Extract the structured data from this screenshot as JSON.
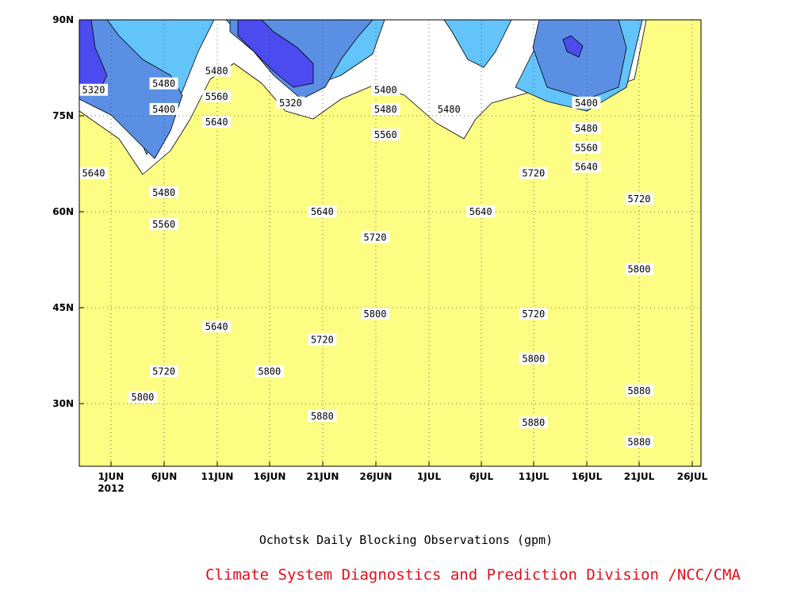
{
  "chart_data": {
    "type": "contour",
    "title": "Ochotsk Daily Blocking Observations (gpm)",
    "footer": "Climate System Diagnostics and Prediction Division /NCC/CMA",
    "x_ticks": [
      "1JUN",
      "6JUN",
      "11JUN",
      "16JUN",
      "21JUN",
      "26JUN",
      "1JUL",
      "6JUL",
      "11JUL",
      "16JUL",
      "21JUL",
      "26JUL"
    ],
    "x_year_label": "2012",
    "y_ticks": [
      "30N",
      "45N",
      "60N",
      "75N",
      "90N"
    ],
    "y_range": [
      20,
      90
    ],
    "grid": true,
    "levels": [
      5320,
      5400,
      5480,
      5560,
      5640,
      5720,
      5800,
      5880
    ],
    "fill_colors": {
      "below_5320": "#4b4bef",
      "5320_5400": "#5a8fe4",
      "5400_5480": "#63c3fb",
      "5480_5560": "#fdfd84",
      "5560_5640": "#fde09e",
      "5640_5720": "#fca367",
      "5720_5800": "#fb7647",
      "5800_5880": "#f56f7d",
      "above_5880": "#f0384e"
    },
    "contour_labels": [
      {
        "value": "5320",
        "date": "30MAY",
        "lat": 79
      },
      {
        "value": "5480",
        "date": "6JUN",
        "lat": 80
      },
      {
        "value": "5400",
        "date": "6JUN",
        "lat": 76
      },
      {
        "value": "5480",
        "date": "11JUN",
        "lat": 82
      },
      {
        "value": "5560",
        "date": "11JUN",
        "lat": 78
      },
      {
        "value": "5640",
        "date": "11JUN",
        "lat": 74
      },
      {
        "value": "5320",
        "date": "18JUN",
        "lat": 77
      },
      {
        "value": "5400",
        "date": "27JUN",
        "lat": 79
      },
      {
        "value": "5480",
        "date": "27JUN",
        "lat": 76
      },
      {
        "value": "5560",
        "date": "27JUN",
        "lat": 72
      },
      {
        "value": "5480",
        "date": "3JUL",
        "lat": 76
      },
      {
        "value": "5400",
        "date": "16JUL",
        "lat": 77
      },
      {
        "value": "5480",
        "date": "16JUL",
        "lat": 73
      },
      {
        "value": "5560",
        "date": "16JUL",
        "lat": 70
      },
      {
        "value": "5640",
        "date": "29MAY",
        "lat": 66
      },
      {
        "value": "5480",
        "date": "6JUN",
        "lat": 63
      },
      {
        "value": "5560",
        "date": "6JUN",
        "lat": 58
      },
      {
        "value": "5640",
        "date": "21JUN",
        "lat": 60
      },
      {
        "value": "5640",
        "date": "6JUL",
        "lat": 60
      },
      {
        "value": "5720",
        "date": "11JUL",
        "lat": 66
      },
      {
        "value": "5640",
        "date": "16JUL",
        "lat": 67
      },
      {
        "value": "5720",
        "date": "21JUL",
        "lat": 62
      },
      {
        "value": "5720",
        "date": "26JUN",
        "lat": 56
      },
      {
        "value": "5800",
        "date": "21JUL",
        "lat": 51
      },
      {
        "value": "5640",
        "date": "11JUN",
        "lat": 42
      },
      {
        "value": "5720",
        "date": "21JUN",
        "lat": 40
      },
      {
        "value": "5800",
        "date": "26JUN",
        "lat": 44
      },
      {
        "value": "5720",
        "date": "11JUL",
        "lat": 44
      },
      {
        "value": "5800",
        "date": "11JUL",
        "lat": 37
      },
      {
        "value": "5720",
        "date": "6JUN",
        "lat": 35
      },
      {
        "value": "5800",
        "date": "16JUN",
        "lat": 35
      },
      {
        "value": "5800",
        "date": "4JUN",
        "lat": 31
      },
      {
        "value": "5880",
        "date": "21JUN",
        "lat": 28
      },
      {
        "value": "5880",
        "date": "11JUL",
        "lat": 27
      },
      {
        "value": "5880",
        "date": "21JUL",
        "lat": 32
      },
      {
        "value": "5880",
        "date": "21JUL",
        "lat": 24
      }
    ]
  }
}
